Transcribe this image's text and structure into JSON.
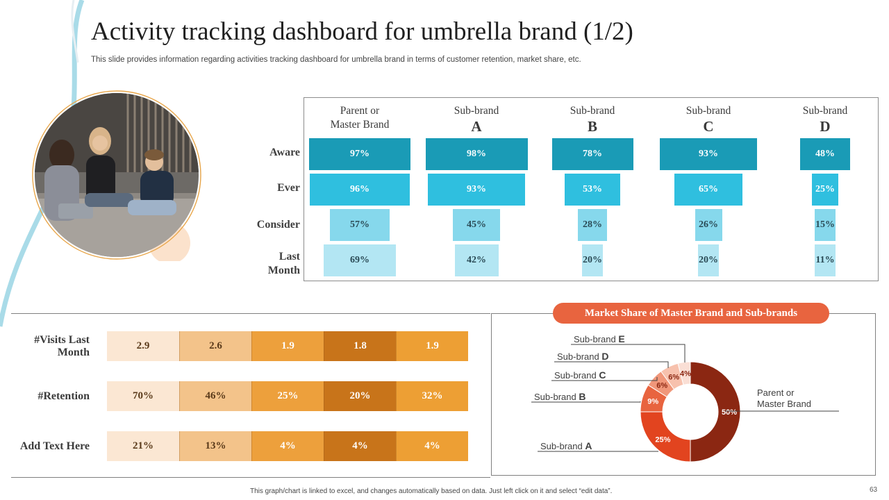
{
  "title": "Activity tracking dashboard for umbrella brand (1/2)",
  "subtitle": "This slide provides information regarding activities tracking dashboard for umbrella brand in terms of customer retention, market share, etc.",
  "footer": "This graph/chart is linked to excel, and changes automatically based on data. Just left click on it and select “edit data”.",
  "page_number": "63",
  "photo_icon": "team-photo-illustration",
  "colors": {
    "funnel_rows": [
      "#1a9bb6",
      "#2fbfdf",
      "#86d8ec",
      "#b3e6f3"
    ],
    "metric_cols": [
      "#fbe7d3",
      "#f3c38a",
      "#eda03c",
      "#c8741a",
      "#ed9f34"
    ],
    "donut": [
      "#8b2712",
      "#e2441f",
      "#e8643f",
      "#f0977a",
      "#f7c1ad",
      "#fadfd5"
    ],
    "pill": "#e8643f"
  },
  "funnel": {
    "columns": [
      {
        "line1": "Parent or",
        "line2": "Master Brand",
        "style": "small"
      },
      {
        "line1": "Sub-brand",
        "line2": "A",
        "style": "big"
      },
      {
        "line1": "Sub-brand",
        "line2": "B",
        "style": "big"
      },
      {
        "line1": "Sub-brand",
        "line2": "C",
        "style": "big"
      },
      {
        "line1": "Sub-brand",
        "line2": "D",
        "style": "big"
      }
    ],
    "rows": [
      {
        "label": "Aware"
      },
      {
        "label": "Ever"
      },
      {
        "label": "Consider"
      },
      {
        "label1": "Last",
        "label2": "Month"
      }
    ]
  },
  "metrics": {
    "labels": [
      {
        "line1": "#Visits Last",
        "line2": "Month"
      },
      {
        "line1": "#Retention"
      },
      {
        "line1": "Add Text Here"
      }
    ]
  },
  "chart_data": [
    {
      "type": "bar",
      "categories": [
        "Parent or Master Brand",
        "Sub-brand A",
        "Sub-brand B",
        "Sub-brand C",
        "Sub-brand D"
      ],
      "series": [
        {
          "name": "Aware",
          "values": [
            97,
            98,
            78,
            93,
            48
          ],
          "labels": [
            "97%",
            "98%",
            "78%",
            "93%",
            "48%"
          ]
        },
        {
          "name": "Ever",
          "values": [
            96,
            93,
            53,
            65,
            25
          ],
          "labels": [
            "96%",
            "93%",
            "53%",
            "65%",
            "25%"
          ]
        },
        {
          "name": "Consider",
          "values": [
            57,
            45,
            28,
            26,
            15
          ],
          "labels": [
            "57%",
            "45%",
            "28%",
            "26%",
            "15%"
          ]
        },
        {
          "name": "Last Month",
          "values": [
            69,
            42,
            20,
            20,
            11
          ],
          "labels": [
            "69%",
            "42%",
            "20%",
            "20%",
            "11%"
          ]
        }
      ],
      "ylim": [
        0,
        100
      ]
    },
    {
      "type": "table",
      "rows": [
        {
          "name": "#Visits Last Month",
          "values": [
            "2.9",
            "2.6",
            "1.9",
            "1.8",
            "1.9"
          ]
        },
        {
          "name": "#Retention",
          "values": [
            "70%",
            "46%",
            "25%",
            "20%",
            "32%"
          ]
        },
        {
          "name": "Add Text Here",
          "values": [
            "21%",
            "13%",
            "4%",
            "4%",
            "4%"
          ]
        }
      ]
    },
    {
      "type": "pie",
      "title": "Market Share of Master Brand and Sub-brands",
      "slices": [
        {
          "name": "Parent or Master Brand",
          "value": 50,
          "label": "50%"
        },
        {
          "name": "Sub-brand A",
          "value": 25,
          "label": "25%"
        },
        {
          "name": "Sub-brand B",
          "value": 9,
          "label": "9%"
        },
        {
          "name": "Sub-brand C",
          "value": 6,
          "label": "6%"
        },
        {
          "name": "Sub-brand D",
          "value": 6,
          "label": "6%"
        },
        {
          "name": "Sub-brand E",
          "value": 4,
          "label": "4%"
        }
      ],
      "legend_labels": [
        {
          "prefix": "Sub-brand",
          "letter": "E"
        },
        {
          "prefix": "Sub-brand",
          "letter": "D"
        },
        {
          "prefix": "Sub-brand",
          "letter": "C"
        },
        {
          "prefix": "Sub-brand",
          "letter": "B"
        },
        {
          "prefix": "Sub-brand",
          "letter": "A"
        }
      ],
      "parent_label": {
        "line1": "Parent or",
        "line2": "Master Brand"
      }
    }
  ]
}
